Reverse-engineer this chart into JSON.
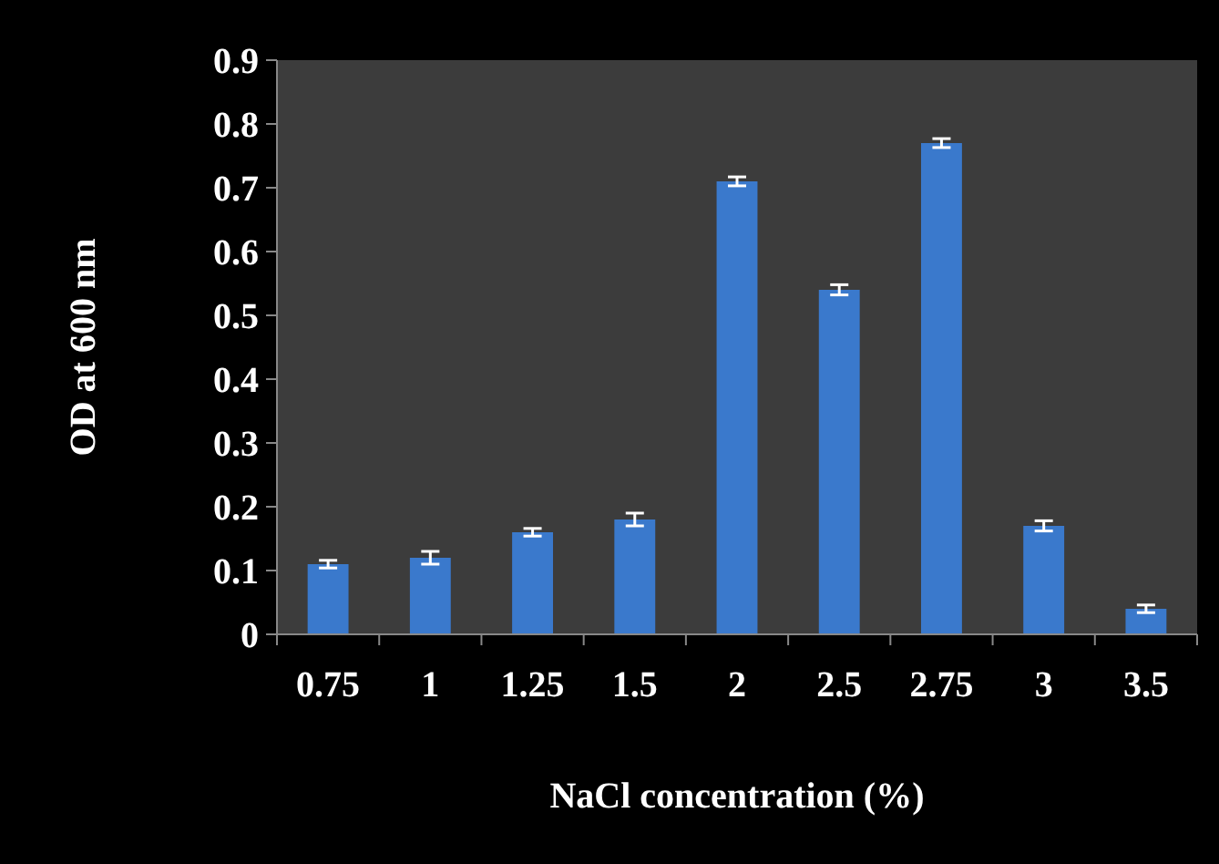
{
  "chart_data": {
    "type": "bar",
    "xlabel": "NaCl concentration (%)",
    "ylabel": "OD at 600 nm",
    "categories": [
      "0.75",
      "1",
      "1.25",
      "1.5",
      "2",
      "2.5",
      "2.75",
      "3",
      "3.5"
    ],
    "values": [
      0.11,
      0.12,
      0.16,
      0.18,
      0.71,
      0.54,
      0.77,
      0.17,
      0.04
    ],
    "errors": [
      0.006,
      0.01,
      0.006,
      0.01,
      0.007,
      0.008,
      0.007,
      0.008,
      0.006
    ],
    "color": "#3a79cc",
    "ylim": [
      0,
      0.9
    ],
    "yticks": [
      0,
      0.1,
      0.2,
      0.3,
      0.4,
      0.5,
      0.6,
      0.7,
      0.8,
      0.9
    ],
    "grid": false
  }
}
